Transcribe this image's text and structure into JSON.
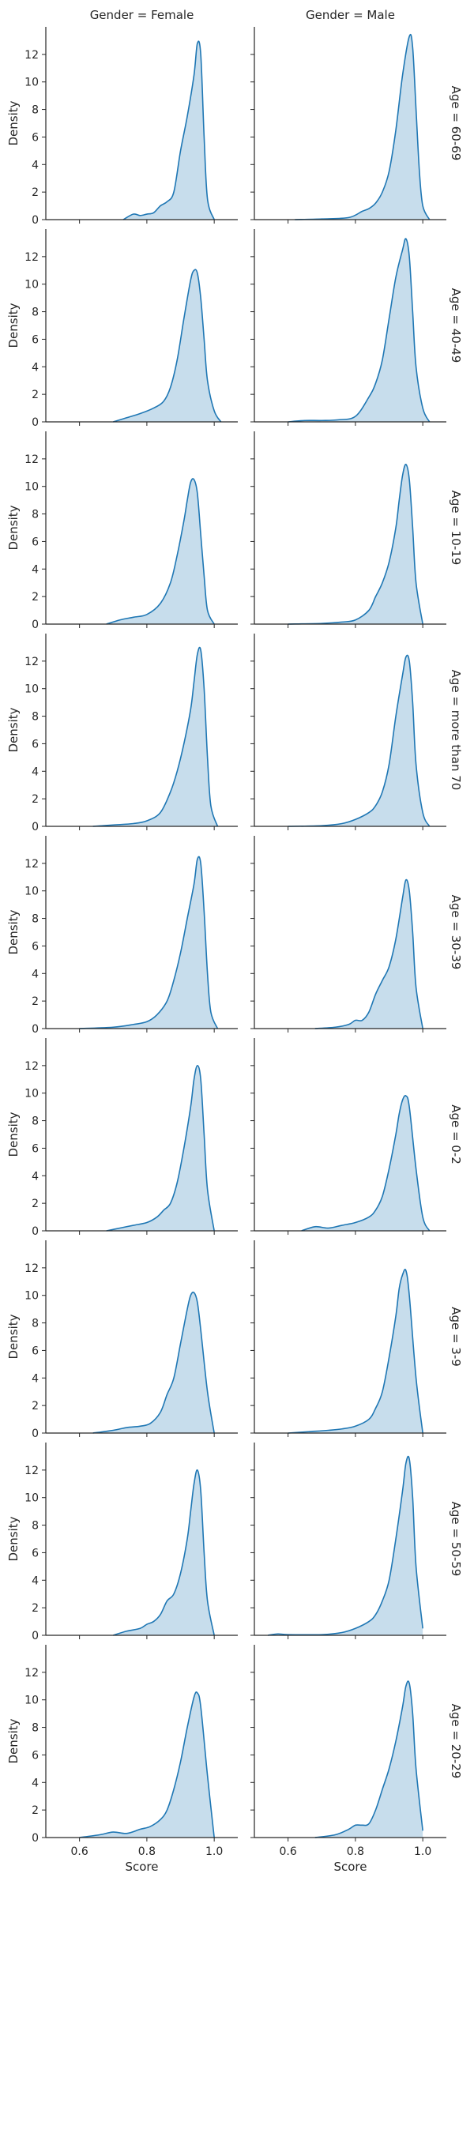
{
  "chart_data": {
    "type": "area",
    "subtype": "kde-facet-grid",
    "col_titles": [
      "Gender = Female",
      "Gender = Male"
    ],
    "row_titles": [
      "Age = 60-69",
      "Age = 40-49",
      "Age = 10-19",
      "Age = more than 70",
      "Age = 30-39",
      "Age = 0-2",
      "Age = 3-9",
      "Age = 50-59",
      "Age = 20-29"
    ],
    "xlabel": "Score",
    "ylabel": "Density",
    "xlim": [
      0.5,
      1.07
    ],
    "ylim": [
      0,
      14
    ],
    "xticks": [
      0.6,
      0.8,
      1.0
    ],
    "xtick_labels": [
      "0.6",
      "0.8",
      "1.0"
    ],
    "yticks": [
      0,
      2,
      4,
      6,
      8,
      10,
      12
    ],
    "ytick_labels": [
      "0",
      "2",
      "4",
      "6",
      "8",
      "10",
      "12"
    ],
    "colors": {
      "line": "#1f77b4",
      "fill": "#1f77b4",
      "fill_opacity": 0.25
    },
    "panels": [
      {
        "row": 0,
        "col": 0,
        "x": [
          0.73,
          0.76,
          0.78,
          0.8,
          0.82,
          0.84,
          0.86,
          0.88,
          0.9,
          0.92,
          0.94,
          0.95,
          0.96,
          0.97,
          0.98,
          1.0
        ],
        "y": [
          0,
          0.4,
          0.3,
          0.4,
          0.5,
          1.0,
          1.3,
          2.0,
          5.0,
          7.5,
          10.5,
          12.8,
          12.0,
          6.0,
          1.5,
          0
        ]
      },
      {
        "row": 0,
        "col": 1,
        "x": [
          0.62,
          0.7,
          0.78,
          0.82,
          0.84,
          0.86,
          0.88,
          0.9,
          0.92,
          0.94,
          0.96,
          0.97,
          0.98,
          0.99,
          1.0,
          1.02
        ],
        "y": [
          0,
          0.05,
          0.15,
          0.6,
          0.8,
          1.2,
          2.0,
          3.5,
          6.5,
          10.5,
          13.3,
          12.5,
          8.0,
          3.5,
          1.0,
          0
        ]
      },
      {
        "row": 1,
        "col": 0,
        "x": [
          0.7,
          0.74,
          0.78,
          0.82,
          0.85,
          0.87,
          0.89,
          0.91,
          0.93,
          0.94,
          0.95,
          0.96,
          0.97,
          0.98,
          1.0,
          1.02
        ],
        "y": [
          0,
          0.3,
          0.6,
          1.0,
          1.5,
          2.5,
          4.5,
          7.5,
          10.3,
          11.0,
          10.8,
          9.0,
          6.0,
          3.0,
          0.8,
          0
        ]
      },
      {
        "row": 1,
        "col": 1,
        "x": [
          0.6,
          0.65,
          0.7,
          0.75,
          0.8,
          0.84,
          0.86,
          0.88,
          0.9,
          0.92,
          0.94,
          0.95,
          0.96,
          0.97,
          0.98,
          1.0,
          1.02
        ],
        "y": [
          0,
          0.1,
          0.1,
          0.15,
          0.4,
          1.8,
          2.8,
          4.5,
          7.5,
          10.5,
          12.5,
          13.3,
          12.0,
          8.0,
          4.0,
          1.0,
          0
        ]
      },
      {
        "row": 2,
        "col": 0,
        "x": [
          0.68,
          0.72,
          0.76,
          0.8,
          0.84,
          0.87,
          0.89,
          0.91,
          0.92,
          0.93,
          0.94,
          0.95,
          0.96,
          0.97,
          0.98,
          1.0
        ],
        "y": [
          0,
          0.3,
          0.5,
          0.7,
          1.5,
          3.0,
          5.0,
          7.5,
          9.0,
          10.3,
          10.5,
          9.5,
          6.5,
          3.5,
          1.0,
          0
        ]
      },
      {
        "row": 2,
        "col": 1,
        "x": [
          0.6,
          0.7,
          0.76,
          0.8,
          0.84,
          0.86,
          0.88,
          0.9,
          0.92,
          0.93,
          0.94,
          0.95,
          0.96,
          0.97,
          0.98,
          1.0
        ],
        "y": [
          0,
          0.05,
          0.15,
          0.3,
          1.0,
          2.0,
          3.0,
          4.5,
          7.0,
          9.0,
          10.8,
          11.6,
          10.5,
          7.0,
          3.0,
          0
        ]
      },
      {
        "row": 3,
        "col": 0,
        "x": [
          0.64,
          0.7,
          0.76,
          0.8,
          0.84,
          0.87,
          0.89,
          0.91,
          0.93,
          0.94,
          0.95,
          0.96,
          0.97,
          0.98,
          0.99,
          1.01
        ],
        "y": [
          0,
          0.1,
          0.2,
          0.4,
          1.0,
          2.5,
          4.0,
          6.0,
          8.5,
          10.5,
          12.5,
          12.8,
          10.0,
          5.0,
          1.5,
          0
        ]
      },
      {
        "row": 3,
        "col": 1,
        "x": [
          0.6,
          0.7,
          0.76,
          0.8,
          0.84,
          0.86,
          0.88,
          0.9,
          0.92,
          0.94,
          0.95,
          0.96,
          0.97,
          0.98,
          1.0,
          1.02
        ],
        "y": [
          0,
          0.05,
          0.2,
          0.5,
          1.0,
          1.5,
          2.5,
          4.5,
          8.0,
          11.0,
          12.3,
          12.0,
          9.0,
          4.5,
          1.0,
          0
        ]
      },
      {
        "row": 4,
        "col": 0,
        "x": [
          0.6,
          0.7,
          0.76,
          0.8,
          0.83,
          0.86,
          0.88,
          0.9,
          0.92,
          0.94,
          0.95,
          0.96,
          0.97,
          0.98,
          0.99,
          1.01
        ],
        "y": [
          0,
          0.1,
          0.3,
          0.5,
          1.0,
          2.0,
          3.5,
          5.5,
          8.0,
          10.5,
          12.3,
          12.0,
          8.5,
          4.0,
          1.2,
          0
        ]
      },
      {
        "row": 4,
        "col": 1,
        "x": [
          0.68,
          0.74,
          0.78,
          0.8,
          0.82,
          0.84,
          0.86,
          0.88,
          0.9,
          0.92,
          0.94,
          0.95,
          0.96,
          0.97,
          0.98,
          1.0
        ],
        "y": [
          0,
          0.1,
          0.3,
          0.6,
          0.6,
          1.2,
          2.5,
          3.5,
          4.5,
          6.5,
          9.5,
          10.8,
          10.0,
          7.0,
          3.0,
          0
        ]
      },
      {
        "row": 5,
        "col": 0,
        "x": [
          0.68,
          0.72,
          0.76,
          0.8,
          0.83,
          0.85,
          0.87,
          0.89,
          0.91,
          0.93,
          0.94,
          0.95,
          0.96,
          0.97,
          0.98,
          1.0
        ],
        "y": [
          0,
          0.2,
          0.4,
          0.6,
          1.0,
          1.5,
          2.0,
          3.5,
          6.0,
          9.0,
          11.0,
          12.0,
          11.0,
          7.0,
          3.0,
          0
        ]
      },
      {
        "row": 5,
        "col": 1,
        "x": [
          0.64,
          0.68,
          0.72,
          0.76,
          0.8,
          0.84,
          0.86,
          0.88,
          0.9,
          0.92,
          0.93,
          0.94,
          0.95,
          0.96,
          0.98,
          1.0,
          1.02
        ],
        "y": [
          0,
          0.3,
          0.2,
          0.4,
          0.6,
          1.0,
          1.5,
          2.5,
          4.5,
          7.0,
          8.5,
          9.5,
          9.8,
          9.0,
          4.5,
          1.0,
          0
        ]
      },
      {
        "row": 6,
        "col": 0,
        "x": [
          0.64,
          0.7,
          0.74,
          0.78,
          0.81,
          0.84,
          0.86,
          0.88,
          0.9,
          0.92,
          0.93,
          0.94,
          0.95,
          0.96,
          0.98,
          1.0
        ],
        "y": [
          0,
          0.2,
          0.4,
          0.5,
          0.7,
          1.5,
          2.8,
          4.0,
          6.5,
          9.0,
          10.0,
          10.2,
          9.5,
          7.5,
          3.0,
          0
        ]
      },
      {
        "row": 6,
        "col": 1,
        "x": [
          0.6,
          0.66,
          0.72,
          0.76,
          0.8,
          0.84,
          0.86,
          0.88,
          0.9,
          0.92,
          0.93,
          0.94,
          0.95,
          0.96,
          0.98,
          1.0
        ],
        "y": [
          0,
          0.1,
          0.2,
          0.3,
          0.5,
          1.0,
          1.8,
          3.0,
          5.5,
          8.5,
          10.5,
          11.5,
          11.8,
          10.0,
          4.0,
          0
        ]
      },
      {
        "row": 7,
        "col": 0,
        "x": [
          0.7,
          0.74,
          0.78,
          0.8,
          0.82,
          0.84,
          0.86,
          0.88,
          0.9,
          0.92,
          0.93,
          0.94,
          0.95,
          0.96,
          0.97,
          0.98,
          1.0
        ],
        "y": [
          0,
          0.3,
          0.5,
          0.8,
          1.0,
          1.5,
          2.5,
          3.0,
          4.5,
          7.0,
          9.0,
          11.0,
          12.0,
          10.5,
          6.0,
          2.5,
          0
        ]
      },
      {
        "row": 7,
        "col": 1,
        "x": [
          0.54,
          0.57,
          0.6,
          0.7,
          0.76,
          0.8,
          0.84,
          0.86,
          0.88,
          0.9,
          0.92,
          0.94,
          0.95,
          0.96,
          0.97,
          0.98,
          1.0
        ],
        "y": [
          0,
          0.1,
          0.05,
          0.05,
          0.2,
          0.5,
          1.0,
          1.5,
          2.5,
          4.0,
          7.0,
          10.5,
          12.5,
          12.8,
          10.0,
          5.0,
          0.5
        ]
      },
      {
        "row": 8,
        "col": 0,
        "x": [
          0.6,
          0.66,
          0.7,
          0.74,
          0.78,
          0.81,
          0.84,
          0.86,
          0.88,
          0.9,
          0.92,
          0.94,
          0.95,
          0.96,
          0.98,
          1.0
        ],
        "y": [
          0,
          0.2,
          0.4,
          0.3,
          0.6,
          0.8,
          1.3,
          2.0,
          3.5,
          5.5,
          8.0,
          10.2,
          10.5,
          9.5,
          4.5,
          0
        ]
      },
      {
        "row": 8,
        "col": 1,
        "x": [
          0.68,
          0.74,
          0.78,
          0.8,
          0.82,
          0.84,
          0.86,
          0.88,
          0.9,
          0.92,
          0.94,
          0.95,
          0.96,
          0.97,
          0.98,
          1.0
        ],
        "y": [
          0,
          0.2,
          0.6,
          0.9,
          0.9,
          1.0,
          2.0,
          3.5,
          5.0,
          7.0,
          9.5,
          11.0,
          11.2,
          9.0,
          5.0,
          0.5
        ]
      }
    ]
  }
}
